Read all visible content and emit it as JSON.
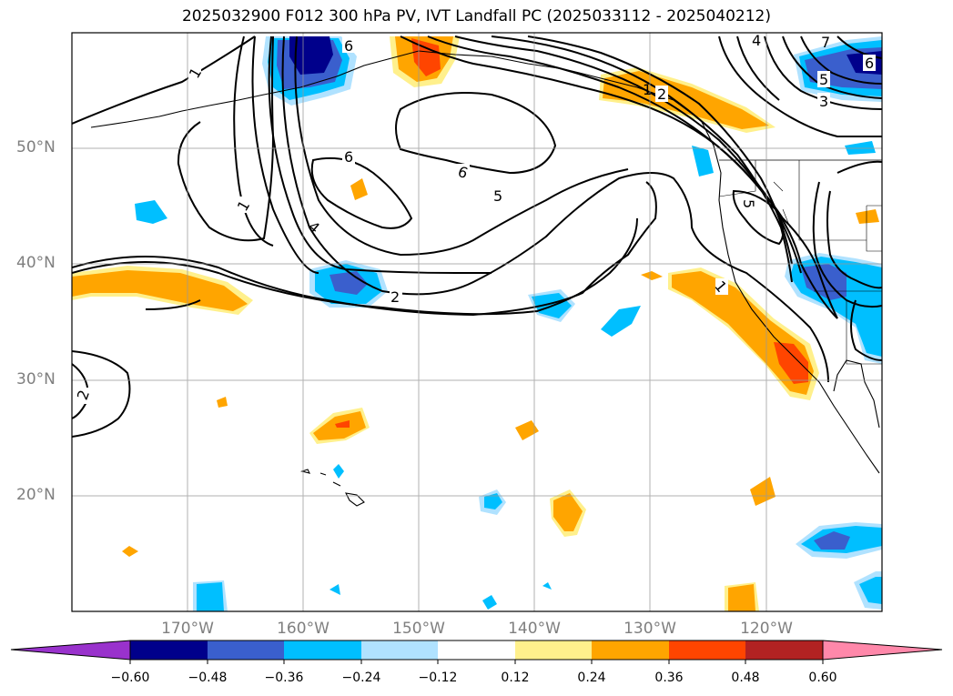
{
  "title": "2025032900 F012 300 hPa PV, IVT Landfall PC (2025033112 - 2025040212)",
  "map": {
    "lat_labels": [
      "50°N",
      "40°N",
      "30°N",
      "20°N"
    ],
    "lon_labels": [
      "170°W",
      "160°W",
      "150°W",
      "140°W",
      "130°W",
      "120°W"
    ],
    "contour_labels": [
      "1",
      "1",
      "6",
      "6",
      "6",
      "4",
      "5",
      "2",
      "1",
      "2",
      "6",
      "5",
      "3",
      "7",
      "5",
      "2",
      "1",
      "4"
    ]
  },
  "colorbar": {
    "ticks": [
      "−0.60",
      "−0.48",
      "−0.36",
      "−0.24",
      "−0.12",
      "0.12",
      "0.24",
      "0.36",
      "0.48",
      "0.60"
    ],
    "colors": [
      "#9932cc",
      "#00008b",
      "#3a5fcd",
      "#00bfff",
      "#b0e2ff",
      "#ffffff",
      "#fff08c",
      "#ffa500",
      "#ff4500",
      "#b22222",
      "#ff88aa"
    ]
  }
}
